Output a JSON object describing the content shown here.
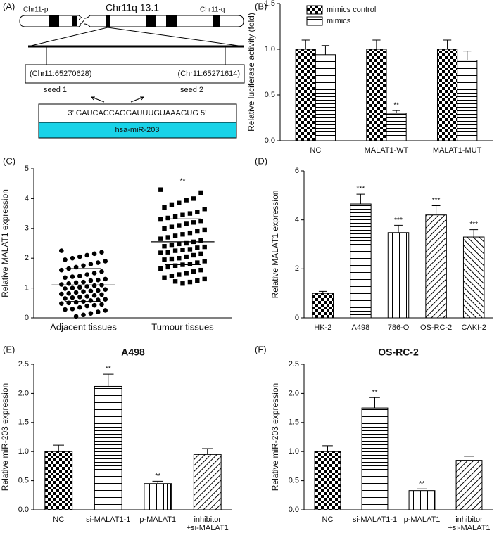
{
  "diagram": {
    "label": "(A)",
    "title": "Chr11q 13.1",
    "arm_p": "Chr11-p",
    "arm_q": "Chr11-q",
    "coord_1": "(Chr11:65270628)",
    "coord_2": "(Chr11:65271614)",
    "seed_1": "seed 1",
    "seed_2": "seed 2",
    "sequence": "3’ GAUCACCAGGAUUUGUAAAGUG 5’",
    "mirna": "hsa-miR-203"
  },
  "chart_data": [
    {
      "type": "bar",
      "label": "(B)",
      "ylabel": "Relative luciferase activity (fold)",
      "categories": [
        "NC",
        "MALAT1-WT",
        "MALAT1-MUT"
      ],
      "series": [
        {
          "name": "mimics control",
          "pattern": "checker",
          "values": [
            1.0,
            1.0,
            1.0
          ],
          "errors": [
            0.1,
            0.1,
            0.1
          ],
          "annotations": [
            null,
            null,
            null
          ]
        },
        {
          "name": "mimics",
          "pattern": "hlines",
          "values": [
            0.94,
            0.3,
            0.88
          ],
          "errors": [
            0.1,
            0.03,
            0.1
          ],
          "annotations": [
            null,
            "**",
            null
          ]
        }
      ],
      "ylim": [
        0,
        1.5
      ],
      "yticks": [
        {
          "value": 0,
          "label": "0.0"
        },
        0.5,
        {
          "value": 1,
          "label": "1.0"
        },
        1.5
      ]
    },
    {
      "type": "scatter",
      "label": "(C)",
      "ylabel": "Relative MALAT1 expression",
      "categories": [
        "Adjacent tissues",
        "Tumour tissues"
      ],
      "groups": [
        {
          "marker": "circle",
          "mean": 1.1,
          "sd": 0.55,
          "annotation": null,
          "values": [
            2.25,
            2.2,
            2.15,
            2.1,
            2.05,
            2.0,
            1.95,
            1.9,
            1.85,
            1.8,
            1.75,
            1.7,
            1.65,
            1.6,
            1.55,
            1.5,
            1.45,
            1.4,
            1.38,
            1.35,
            1.3,
            1.27,
            1.25,
            1.2,
            1.18,
            1.15,
            1.12,
            1.1,
            1.08,
            1.05,
            1.02,
            1.0,
            0.98,
            0.95,
            0.92,
            0.9,
            0.88,
            0.85,
            0.82,
            0.8,
            0.78,
            0.75,
            0.72,
            0.7,
            0.68,
            0.65,
            0.62,
            0.6,
            0.58,
            0.55,
            0.52,
            0.5,
            0.48,
            0.45,
            0.42,
            0.4,
            0.35,
            0.3,
            0.28,
            0.25,
            0.2,
            0.15,
            0.1,
            0.05
          ]
        },
        {
          "marker": "square",
          "mean": 2.55,
          "sd": 0.77,
          "annotation": "**",
          "values": [
            4.3,
            4.2,
            4.0,
            3.95,
            3.85,
            3.8,
            3.7,
            3.65,
            3.55,
            3.5,
            3.45,
            3.4,
            3.35,
            3.3,
            3.25,
            3.2,
            3.15,
            3.1,
            3.05,
            3.0,
            2.95,
            2.9,
            2.85,
            2.8,
            2.75,
            2.7,
            2.65,
            2.6,
            2.55,
            2.5,
            2.48,
            2.45,
            2.4,
            2.38,
            2.35,
            2.3,
            2.28,
            2.25,
            2.2,
            2.18,
            2.15,
            2.1,
            2.05,
            2.0,
            1.98,
            1.95,
            1.9,
            1.85,
            1.8,
            1.78,
            1.75,
            1.7,
            1.65,
            1.6,
            1.55,
            1.5,
            1.45,
            1.4,
            1.35,
            1.3,
            1.25,
            1.2,
            1.15,
            1.22
          ]
        }
      ],
      "ylim": [
        0,
        5
      ],
      "yticks": [
        0,
        1,
        2,
        3,
        4,
        5
      ]
    },
    {
      "type": "bar",
      "label": "(D)",
      "ylabel": "Relative MALAT1 expression",
      "categories": [
        "HK-2",
        "A498",
        "786-O",
        "OS-RC-2",
        "CAKI-2"
      ],
      "series": [
        {
          "patterns": [
            "checker",
            "hlines",
            "vlines",
            "diag-up",
            "diag-down"
          ],
          "values": [
            1.0,
            4.65,
            3.48,
            4.2,
            3.3
          ],
          "errors": [
            0.08,
            0.4,
            0.3,
            0.38,
            0.3
          ],
          "annotations": [
            null,
            "***",
            "***",
            "***",
            "***"
          ]
        }
      ],
      "ylim": [
        0,
        6
      ],
      "yticks": [
        0,
        2,
        4,
        6
      ]
    },
    {
      "type": "bar",
      "label": "(E)",
      "title": "A498",
      "ylabel": "Relative miR-203 expression",
      "categories": [
        "NC",
        "si-MALAT1-1",
        "p-MALAT1",
        "inhibitor\n+si-MALAT1"
      ],
      "series": [
        {
          "patterns": [
            "checker",
            "hlines",
            "vlines",
            "diag-up"
          ],
          "values": [
            1.0,
            2.12,
            0.45,
            0.95
          ],
          "errors": [
            0.11,
            0.21,
            0.04,
            0.1
          ],
          "annotations": [
            null,
            "**",
            "**",
            null
          ]
        }
      ],
      "ylim": [
        0,
        2.5
      ],
      "yticks": [
        {
          "value": 0,
          "label": "0.0"
        },
        0.5,
        {
          "value": 1,
          "label": "1.0"
        },
        1.5,
        {
          "value": 2,
          "label": "2.0"
        },
        2.5
      ]
    },
    {
      "type": "bar",
      "label": "(F)",
      "title": "OS-RC-2",
      "ylabel": "Relative miR-203 expression",
      "categories": [
        "NC",
        "si-MALAT1-1",
        "p-MALAT1",
        "inhibitor\n+si-MALAT1"
      ],
      "series": [
        {
          "patterns": [
            "checker",
            "hlines",
            "vlines",
            "diag-up"
          ],
          "values": [
            1.0,
            1.75,
            0.33,
            0.85
          ],
          "errors": [
            0.1,
            0.18,
            0.03,
            0.07
          ],
          "annotations": [
            null,
            "**",
            "**",
            null
          ]
        }
      ],
      "ylim": [
        0,
        2.5
      ],
      "yticks": [
        {
          "value": 0,
          "label": "0.0"
        },
        0.5,
        {
          "value": 1,
          "label": "1.0"
        },
        1.5,
        {
          "value": 2,
          "label": "2.0"
        },
        2.5
      ]
    }
  ]
}
